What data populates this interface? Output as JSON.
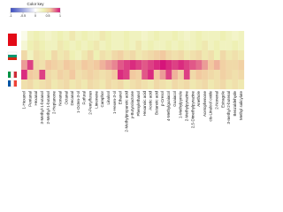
{
  "chart_data": {
    "type": "heatmap",
    "colorbar_title": "Color key",
    "colorbar_ticks": [
      -1,
      -0.5,
      0,
      0.5,
      1
    ],
    "clim": [
      -1,
      1
    ],
    "color_stops": [
      [
        -1,
        "#3b4cc0"
      ],
      [
        0,
        "#ffffff"
      ],
      [
        0.35,
        "#eef0b4"
      ],
      [
        0.6,
        "#f2c9a0"
      ],
      [
        1,
        "#d6147a"
      ]
    ],
    "x": [
      "1-Hexanol",
      "Pentanal",
      "Hexanal",
      "3-Methyl-1-butanol",
      "2-Methyl-1-butanol",
      "2-Heptanone",
      "Nonanal",
      "Octanal",
      "Decanal",
      "1-Octen-3-ol",
      "Furfural",
      "2-Pentylfuran",
      "Limonene",
      "Camphor",
      "Linalool",
      "1-Hexen-3-ol",
      "Ethanol",
      "2-Methylpropanoic acid",
      "γ-Butyrolactone",
      "Phenylethanol",
      "Hexanoic acid",
      "Acetic acid",
      "Butanoic acid",
      "p-Cresol",
      "4-Methylguaiacol",
      "Guaiacol",
      "1-Methylpyrrole",
      "2-Methylpyrazine",
      "2,5-Dimethylpyrazine",
      "Anethole",
      "Acetophenone",
      "cis-Linalool oxide",
      "2-Nonenal",
      "Estragole",
      "3-methyl-2-butenal",
      "Benzaldehyde",
      "Methyl salicylate"
    ],
    "z": [
      [
        0.1,
        0.3,
        0.35,
        0.3,
        0.25,
        0.3,
        0.35,
        0.3,
        0.4,
        0.3,
        0.35,
        0.3,
        0.3,
        0.4,
        0.35,
        0.3,
        0.3,
        0.35,
        0.3,
        0.3,
        0.25,
        0.3,
        0.35,
        0.3,
        0.3,
        0.35,
        0.3,
        0.25,
        0.3,
        0.35,
        0.3,
        0.3,
        0.3,
        0.35,
        0.3,
        0.25,
        0.3
      ],
      [
        0.2,
        0.35,
        0.4,
        0.35,
        0.3,
        0.3,
        0.4,
        0.35,
        0.3,
        0.35,
        0.3,
        0.35,
        0.4,
        0.3,
        0.35,
        0.3,
        0.3,
        0.35,
        0.3,
        0.4,
        0.3,
        0.35,
        0.3,
        0.3,
        0.35,
        0.3,
        0.35,
        0.3,
        0.3,
        0.35,
        0.4,
        0.3,
        0.35,
        0.3,
        0.3,
        0.35,
        0.3
      ],
      [
        0.5,
        0.3,
        0.45,
        0.4,
        0.35,
        0.5,
        0.4,
        0.45,
        0.35,
        0.3,
        0.4,
        0.5,
        0.35,
        0.45,
        0.4,
        0.5,
        0.55,
        0.45,
        0.5,
        0.4,
        0.45,
        0.5,
        0.55,
        0.6,
        0.5,
        0.45,
        0.5,
        0.4,
        0.45,
        0.5,
        0.4,
        0.45,
        0.35,
        0.5,
        0.4,
        0.45,
        0.4
      ],
      [
        0.7,
        0.9,
        0.5,
        0.45,
        0.6,
        0.55,
        0.5,
        0.6,
        0.55,
        0.5,
        0.6,
        0.55,
        0.6,
        0.65,
        0.7,
        0.75,
        0.85,
        0.9,
        0.95,
        0.9,
        0.85,
        0.9,
        0.95,
        1.0,
        0.95,
        0.9,
        0.95,
        0.9,
        0.85,
        0.8,
        0.7,
        0.6,
        0.65,
        0.55,
        0.5,
        0.5,
        0.55
      ],
      [
        0.95,
        0.6,
        0.55,
        0.9,
        0.5,
        0.45,
        0.55,
        0.5,
        0.6,
        0.45,
        0.5,
        0.55,
        0.5,
        0.45,
        0.5,
        0.6,
        0.95,
        0.9,
        0.6,
        0.55,
        0.85,
        0.95,
        0.6,
        0.7,
        0.9,
        0.65,
        0.55,
        0.9,
        0.5,
        0.6,
        0.55,
        0.5,
        0.45,
        0.55,
        0.5,
        0.45,
        0.5
      ],
      [
        0.45,
        0.5,
        0.4,
        0.45,
        0.5,
        0.4,
        0.45,
        0.5,
        0.4,
        0.45,
        0.4,
        0.5,
        0.45,
        0.4,
        0.5,
        0.45,
        0.5,
        0.4,
        0.45,
        0.5,
        0.45,
        0.4,
        0.5,
        0.45,
        0.4,
        0.5,
        0.45,
        0.5,
        0.4,
        0.45,
        0.5,
        0.4,
        0.45,
        0.5,
        0.4,
        0.45,
        0.4
      ]
    ]
  }
}
